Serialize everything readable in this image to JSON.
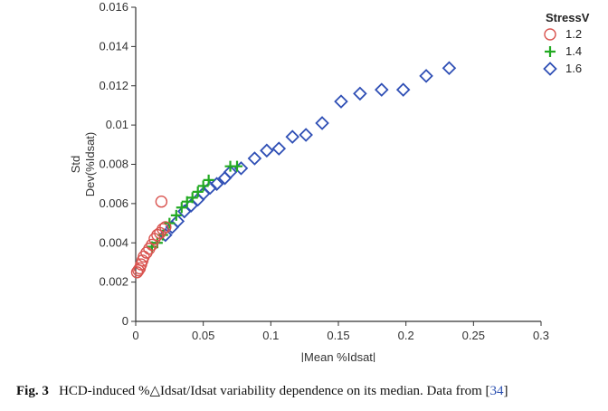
{
  "chart_data": {
    "type": "scatter",
    "xlabel": "|Mean %Idsat|",
    "ylabel_lines": [
      "Std",
      "Dev(%Idsat)"
    ],
    "xlim": [
      0,
      0.3
    ],
    "ylim": [
      0,
      0.016
    ],
    "x_ticks": [
      0,
      0.05,
      0.1,
      0.15,
      0.2,
      0.25,
      0.3
    ],
    "x_tick_labels": [
      "0",
      "0.05",
      "0.1",
      "0.15",
      "0.2",
      "0.25",
      "0.3"
    ],
    "y_ticks": [
      0,
      0.002,
      0.004,
      0.006,
      0.008,
      0.01,
      0.012,
      0.014,
      0.016
    ],
    "y_tick_labels": [
      "0",
      "0.002",
      "0.004",
      "0.006",
      "0.008",
      "0.01",
      "0.012",
      "0.014",
      "0.016"
    ],
    "grid": false,
    "legend": {
      "title": "StressV",
      "placement": "top-right",
      "entries": [
        "1.2",
        "1.4",
        "1.6"
      ]
    },
    "series": [
      {
        "name": "1.2",
        "marker": "circle",
        "color": "#d9534f",
        "points": [
          [
            0.001,
            0.0025
          ],
          [
            0.002,
            0.0026
          ],
          [
            0.003,
            0.0027
          ],
          [
            0.004,
            0.0029
          ],
          [
            0.005,
            0.0031
          ],
          [
            0.006,
            0.0033
          ],
          [
            0.008,
            0.0035
          ],
          [
            0.01,
            0.0037
          ],
          [
            0.012,
            0.0039
          ],
          [
            0.014,
            0.0042
          ],
          [
            0.016,
            0.0044
          ],
          [
            0.018,
            0.0045
          ],
          [
            0.02,
            0.0047
          ],
          [
            0.022,
            0.0048
          ],
          [
            0.019,
            0.0061
          ]
        ]
      },
      {
        "name": "1.4",
        "marker": "plus",
        "color": "#22aa22",
        "points": [
          [
            0.012,
            0.0038
          ],
          [
            0.016,
            0.004
          ],
          [
            0.02,
            0.0044
          ],
          [
            0.025,
            0.005
          ],
          [
            0.03,
            0.0054
          ],
          [
            0.034,
            0.0058
          ],
          [
            0.038,
            0.0061
          ],
          [
            0.042,
            0.0063
          ],
          [
            0.046,
            0.0066
          ],
          [
            0.05,
            0.0069
          ],
          [
            0.054,
            0.0072
          ],
          [
            0.07,
            0.0079
          ],
          [
            0.075,
            0.0079
          ]
        ]
      },
      {
        "name": "1.6",
        "marker": "diamond",
        "color": "#2f4fb5",
        "points": [
          [
            0.022,
            0.0044
          ],
          [
            0.027,
            0.0048
          ],
          [
            0.031,
            0.0051
          ],
          [
            0.036,
            0.0056
          ],
          [
            0.041,
            0.0059
          ],
          [
            0.046,
            0.0062
          ],
          [
            0.05,
            0.0065
          ],
          [
            0.055,
            0.0068
          ],
          [
            0.06,
            0.007
          ],
          [
            0.066,
            0.0073
          ],
          [
            0.07,
            0.0076
          ],
          [
            0.078,
            0.0078
          ],
          [
            0.088,
            0.0083
          ],
          [
            0.097,
            0.0087
          ],
          [
            0.106,
            0.0088
          ],
          [
            0.116,
            0.0094
          ],
          [
            0.126,
            0.0095
          ],
          [
            0.138,
            0.0101
          ],
          [
            0.152,
            0.0112
          ],
          [
            0.166,
            0.0116
          ],
          [
            0.182,
            0.0118
          ],
          [
            0.198,
            0.0118
          ],
          [
            0.215,
            0.0125
          ],
          [
            0.232,
            0.0129
          ]
        ]
      }
    ]
  },
  "caption": {
    "label": "Fig. 3",
    "text": "HCD-induced %△Idsat/Idsat variability dependence on its median. Data from [",
    "ref": "34",
    "close": "]"
  }
}
